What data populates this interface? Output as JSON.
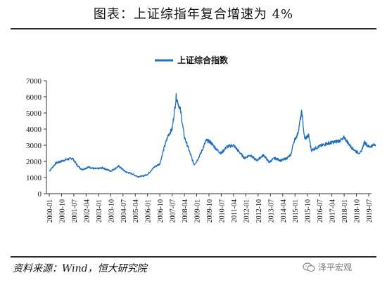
{
  "header": {
    "title": "图表：上证综指年复合增速为 4%"
  },
  "footer": {
    "source": "资料来源：Wind，恒大研究院",
    "watermark": "泽平宏观",
    "watermark_icon": "wechat-icon"
  },
  "chart_data": {
    "type": "line",
    "title": "",
    "xlabel": "",
    "ylabel": "",
    "ylim": [
      0,
      7000
    ],
    "yticks": [
      0,
      1000,
      2000,
      3000,
      4000,
      5000,
      6000,
      7000
    ],
    "x_tick_labels": [
      "2000-01",
      "2000-10",
      "2001-07",
      "2002-04",
      "2003-01",
      "2003-10",
      "2004-07",
      "2005-04",
      "2006-01",
      "2006-10",
      "2007-07",
      "2008-04",
      "2009-01",
      "2009-10",
      "2010-07",
      "2011-04",
      "2012-01",
      "2012-10",
      "2013-07",
      "2014-04",
      "2015-01",
      "2015-10",
      "2016-07",
      "2017-04",
      "2018-01",
      "2018-10",
      "2019-07"
    ],
    "legend_position": "top-center",
    "grid": false,
    "series": [
      {
        "name": "上证综合指数",
        "color": "#1f6fc0",
        "x": [
          "2000-01",
          "2000-06",
          "2001-01",
          "2001-06",
          "2001-10",
          "2002-01",
          "2002-06",
          "2002-10",
          "2003-01",
          "2003-04",
          "2003-10",
          "2004-01",
          "2004-04",
          "2004-09",
          "2005-01",
          "2005-06",
          "2005-10",
          "2006-01",
          "2006-06",
          "2006-10",
          "2007-01",
          "2007-04",
          "2007-07",
          "2007-10",
          "2008-01",
          "2008-04",
          "2008-07",
          "2008-11",
          "2009-01",
          "2009-04",
          "2009-08",
          "2009-11",
          "2010-04",
          "2010-07",
          "2010-11",
          "2011-04",
          "2011-07",
          "2011-12",
          "2012-04",
          "2012-09",
          "2013-02",
          "2013-06",
          "2013-10",
          "2014-03",
          "2014-07",
          "2014-10",
          "2014-12",
          "2015-03",
          "2015-06",
          "2015-08",
          "2015-11",
          "2016-01",
          "2016-06",
          "2016-12",
          "2017-06",
          "2017-12",
          "2018-01",
          "2018-06",
          "2018-10",
          "2019-01",
          "2019-04",
          "2019-07",
          "2019-12"
        ],
        "values": [
          1400,
          1900,
          2100,
          2200,
          1700,
          1500,
          1650,
          1550,
          1550,
          1600,
          1400,
          1550,
          1700,
          1350,
          1250,
          1050,
          1100,
          1200,
          1650,
          1850,
          2800,
          3600,
          4000,
          6000,
          5200,
          3500,
          2800,
          1800,
          2000,
          2500,
          3300,
          3200,
          2700,
          2500,
          2900,
          3000,
          2700,
          2200,
          2400,
          2050,
          2400,
          1950,
          2200,
          2050,
          2200,
          2400,
          3200,
          3700,
          5100,
          3400,
          3600,
          2700,
          2900,
          3100,
          3200,
          3350,
          3500,
          2900,
          2600,
          2500,
          3200,
          2900,
          3050
        ]
      }
    ]
  }
}
